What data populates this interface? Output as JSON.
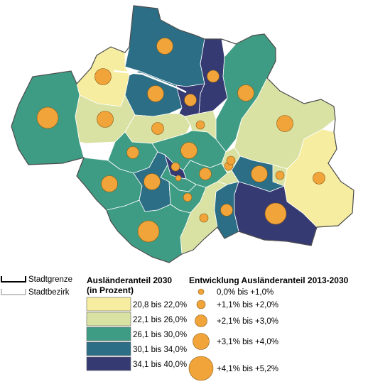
{
  "legend": {
    "boundary_city": "Stadtgrenze",
    "boundary_district": "Stadtbezirk",
    "share_title_line1": "Ausländeranteil 2030",
    "share_title_line2": "(in Prozent)",
    "share_classes": [
      {
        "label": "20,8 bis 22,0%",
        "color": "#f6eda0"
      },
      {
        "label": "22,1 bis 26,0%",
        "color": "#d9e2a3"
      },
      {
        "label": "26,1 bis 30,0%",
        "color": "#3f9c84"
      },
      {
        "label": "30,1 bis 34,0%",
        "color": "#2b6e86"
      },
      {
        "label": "34,1 bis 40,0%",
        "color": "#363a72"
      }
    ],
    "growth_title": "Entwicklung Ausländeranteil 2013-2030",
    "growth_classes": [
      {
        "label": "0,0% bis +1,0%"
      },
      {
        "label": "+1,1% bis +2,0%"
      },
      {
        "label": "+2,1% bis +3,0%"
      },
      {
        "label": "+3,1% bis +4,0%"
      },
      {
        "label": "+4,1% bis +5,2%"
      }
    ],
    "circle_color": "#f0a43a"
  },
  "districts": [
    {
      "id": "d-nw-north",
      "cls": 3,
      "growth": 3
    },
    {
      "id": "d-north-purple",
      "cls": 4,
      "growth": 2
    },
    {
      "id": "d-northeast",
      "cls": 2,
      "growth": 3
    },
    {
      "id": "d-west-yellow",
      "cls": 0,
      "growth": 3
    },
    {
      "id": "d-center-north-blue",
      "cls": 3,
      "growth": 3
    },
    {
      "id": "d-center-north-purple",
      "cls": 4,
      "growth": 2
    },
    {
      "id": "d-east-light",
      "cls": 1,
      "growth": 3
    },
    {
      "id": "d-far-west",
      "cls": 2,
      "growth": 4
    },
    {
      "id": "d-west-light",
      "cls": 1,
      "growth": 3
    },
    {
      "id": "d-center-belt",
      "cls": 1,
      "growth": 2
    },
    {
      "id": "d-center-small",
      "cls": 1,
      "growth": 1
    },
    {
      "id": "d-southeast-light",
      "cls": 0,
      "growth": 2
    },
    {
      "id": "d-center-green1",
      "cls": 2,
      "growth": 2
    },
    {
      "id": "d-center-green2",
      "cls": 2,
      "growth": 3
    },
    {
      "id": "d-center-green3",
      "cls": 2,
      "growth": 2
    },
    {
      "id": "d-core-purple",
      "cls": 4,
      "growth": 1
    },
    {
      "id": "d-core-small1",
      "cls": 2,
      "growth": 0
    },
    {
      "id": "d-east-blue",
      "cls": 3,
      "growth": 3
    },
    {
      "id": "d-east-center-light",
      "cls": 1,
      "growth": 1
    },
    {
      "id": "d-southwest-green",
      "cls": 2,
      "growth": 3
    },
    {
      "id": "d-south-blue",
      "cls": 3,
      "growth": 3
    },
    {
      "id": "d-south-green-small",
      "cls": 2,
      "growth": 1
    },
    {
      "id": "d-south-light",
      "cls": 1,
      "growth": 1
    },
    {
      "id": "d-southeast-blue",
      "cls": 3,
      "growth": 2
    },
    {
      "id": "d-southeast-purple",
      "cls": 4,
      "growth": 4
    },
    {
      "id": "d-south-green",
      "cls": 2,
      "growth": 4
    },
    {
      "id": "d-east-small-light",
      "cls": 1,
      "growth": 1
    },
    {
      "id": "d-center-east-light",
      "cls": 1,
      "growth": 1
    }
  ]
}
